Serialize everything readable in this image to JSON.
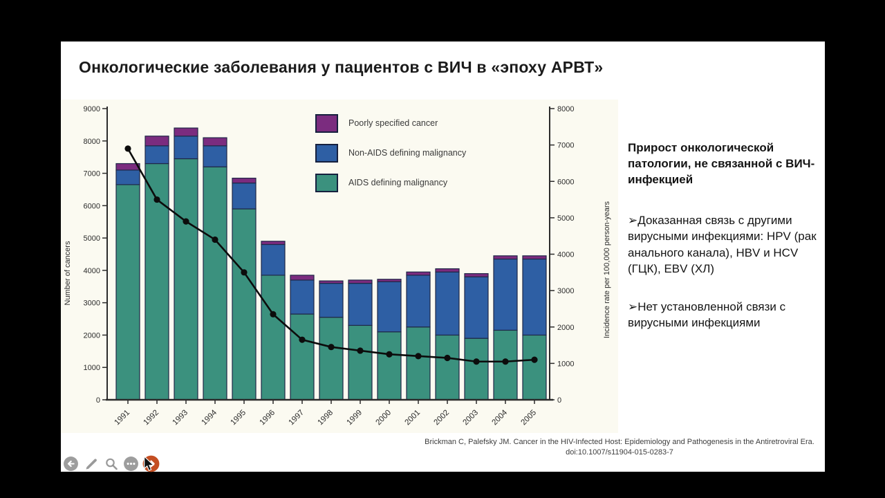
{
  "window": {
    "letterbox_color": "#000000",
    "slide_background": "#ffffff"
  },
  "slide": {
    "title": "Онкологические заболевания у пациентов с ВИЧ в «эпоху АРВТ»"
  },
  "chart_data": {
    "type": "bar",
    "subtype": "stacked-bars-with-line-overlay",
    "title": "",
    "background": "#fbfaf1",
    "bar_border": "#1f2747",
    "categories": [
      "1991",
      "1992",
      "1993",
      "1994",
      "1995",
      "1996",
      "1997",
      "1998",
      "1999",
      "2000",
      "2001",
      "2002",
      "2003",
      "2004",
      "2005"
    ],
    "series": [
      {
        "name": "AIDS defining malignancy",
        "color": "#3b917e",
        "values": [
          6650,
          7300,
          7450,
          7200,
          5900,
          3850,
          2650,
          2550,
          2300,
          2100,
          2250,
          2000,
          1900,
          2150,
          2000
        ]
      },
      {
        "name": "Non-AIDS defining malignancy",
        "color": "#2e5fa4",
        "values": [
          450,
          550,
          700,
          650,
          800,
          950,
          1050,
          1050,
          1300,
          1550,
          1600,
          1950,
          1900,
          2200,
          2350
        ]
      },
      {
        "name": "Poorly specified cancer",
        "color": "#7b2c7f",
        "values": [
          200,
          300,
          250,
          250,
          150,
          100,
          150,
          75,
          100,
          75,
          100,
          100,
          100,
          100,
          100
        ]
      }
    ],
    "legend_order": [
      "Poorly specified cancer",
      "Non-AIDS defining malignancy",
      "AIDS defining malignancy"
    ],
    "line_series": {
      "name": "Incidence rate",
      "color": "#0c0c0c",
      "axis": "right",
      "marker": "circle",
      "values": [
        6900,
        5500,
        4900,
        4400,
        3500,
        2350,
        1650,
        1450,
        1350,
        1250,
        1200,
        1150,
        1050,
        1050,
        1100
      ]
    },
    "left_axis": {
      "label": "Number of cancers",
      "min": 0,
      "max": 9000,
      "ticks": [
        "0",
        "1000",
        "2000",
        "3000",
        "4000",
        "5000",
        "6000",
        "7000",
        "8000",
        "9000"
      ]
    },
    "right_axis": {
      "label": "Incidence rate per 100,000 person-years",
      "min": 0,
      "max": 8000,
      "ticks": [
        "0",
        "1000",
        "2000",
        "3000",
        "4000",
        "5000",
        "6000",
        "7000",
        "8000"
      ]
    },
    "grid": false,
    "legend_position": "inside-top"
  },
  "side_panel": {
    "heading": "Прирост онкологической патологии, не связанной с ВИЧ-инфекцией",
    "bullet_glyph": "➢",
    "bullets": [
      "Доказанная связь с другими вирусными инфекциями: HPV (рак анального канала), HBV и HCV (ГЦК), EBV (ХЛ)",
      "Нет установленной связи с вирусными инфекциями"
    ]
  },
  "citation": {
    "line1": "Brickman C, Palefsky JM. Cancer in the HIV-Infected Host: Epidemiology and Pathogenesis in the Antiretroviral Era.",
    "line2": "doi:10.1007/s11904-015-0283-7"
  },
  "toolbar": {
    "buttons": [
      {
        "name": "previous-slide",
        "icon": "arrow-left-circle-icon",
        "color": "#8f8f8f"
      },
      {
        "name": "pen-tool",
        "icon": "pen-icon",
        "color": "#8f8f8f"
      },
      {
        "name": "zoom-tool",
        "icon": "magnifier-icon",
        "color": "#8f8f8f"
      },
      {
        "name": "more-options",
        "icon": "ellipsis-circle-icon",
        "color": "#8f8f8f"
      },
      {
        "name": "next-slide",
        "icon": "arrow-right-circle-icon",
        "color": "#c44e22"
      }
    ]
  }
}
